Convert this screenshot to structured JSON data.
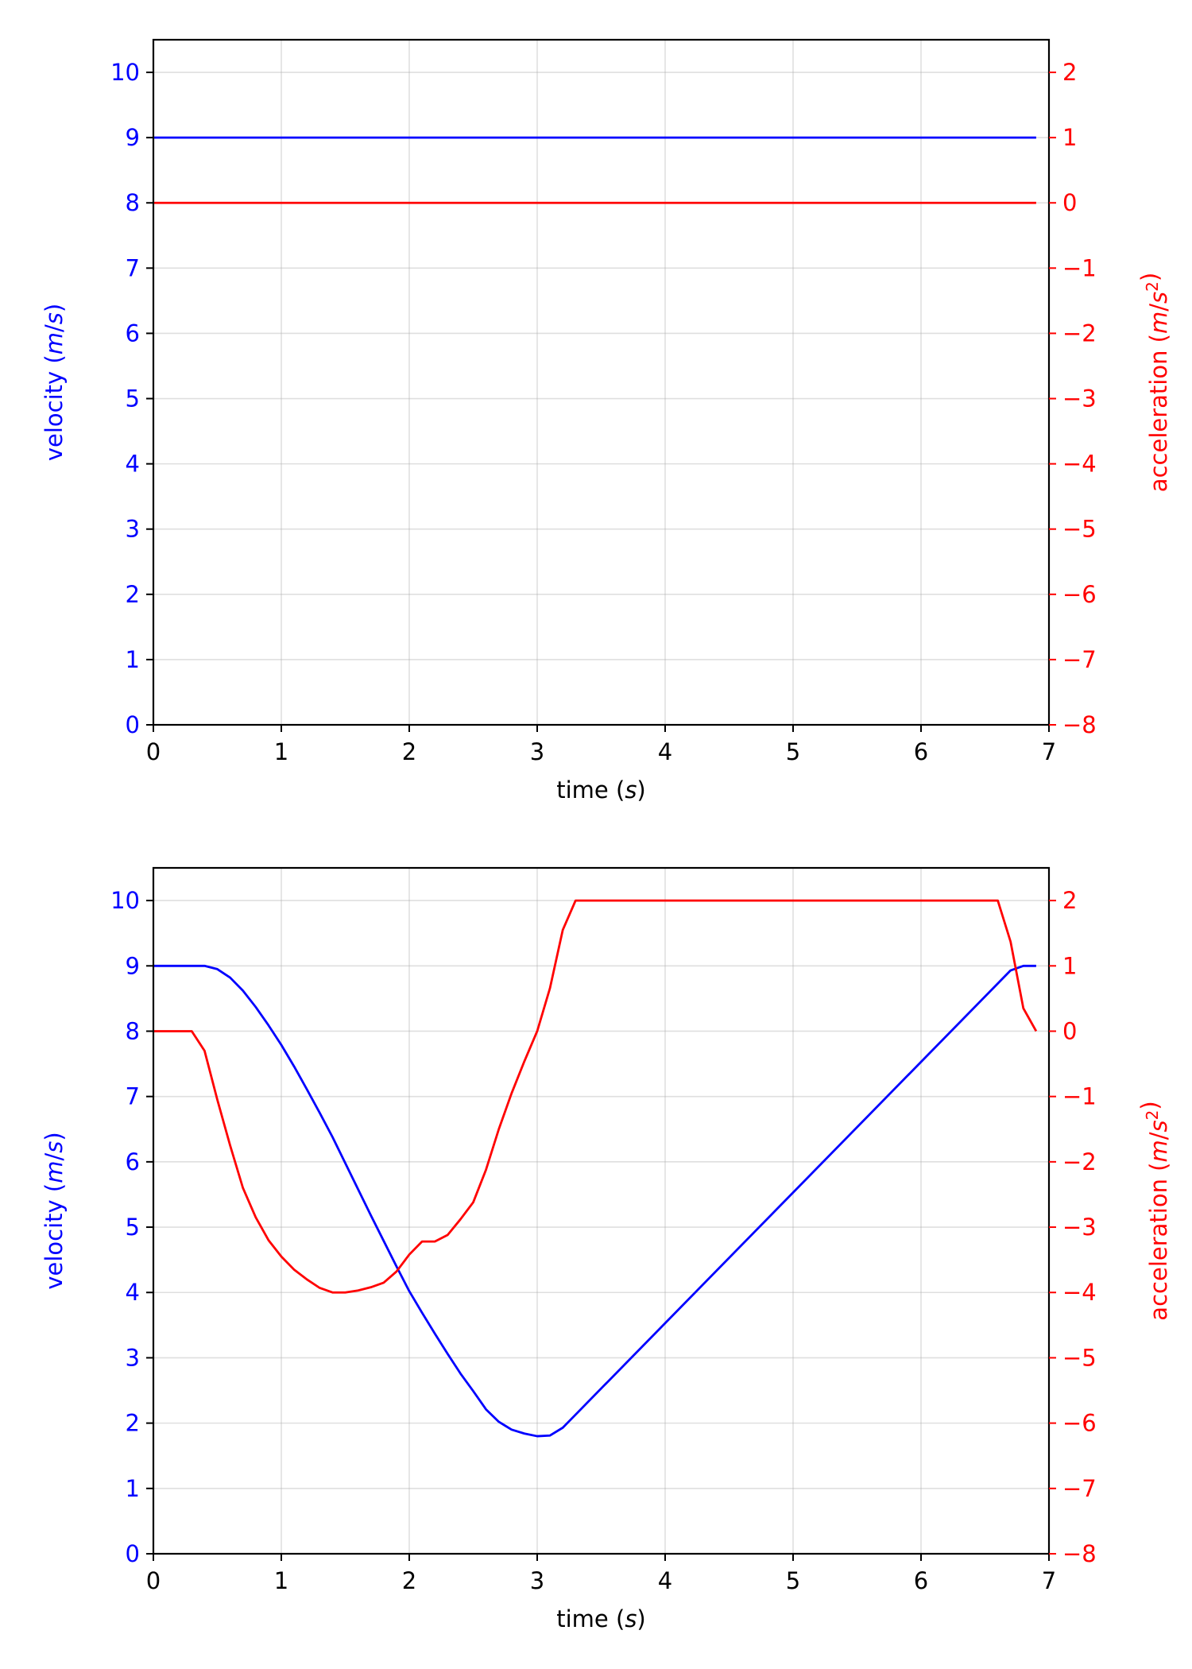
{
  "colors": {
    "velocity": "#0000ff",
    "acceleration": "#ff0000",
    "neutral": "#000000"
  },
  "chart_data": [
    {
      "type": "line",
      "xlabel": "time (s)",
      "ylabel_left": "velocity (m/s)",
      "ylabel_right": "acceleration (m/s²)",
      "xlim": [
        0,
        7
      ],
      "ylim_left": [
        0,
        10.5
      ],
      "ylim_right": [
        -8,
        2.5
      ],
      "xticks": [
        0,
        1,
        2,
        3,
        4,
        5,
        6,
        7
      ],
      "yticks_left": [
        0,
        1,
        2,
        3,
        4,
        5,
        6,
        7,
        8,
        9,
        10
      ],
      "yticks_right": [
        -8,
        -7,
        -6,
        -5,
        -4,
        -3,
        -2,
        -1,
        0,
        1,
        2
      ],
      "grid": true,
      "series": [
        {
          "axis": "left",
          "color": "#0000ff",
          "x": [
            0,
            6.9
          ],
          "y": [
            9,
            9
          ]
        },
        {
          "axis": "right",
          "color": "#ff0000",
          "x": [
            0,
            6.9
          ],
          "y": [
            0,
            0
          ]
        }
      ]
    },
    {
      "type": "line",
      "xlabel": "time (s)",
      "ylabel_left": "velocity (m/s)",
      "ylabel_right": "acceleration (m/s²)",
      "xlim": [
        0,
        7
      ],
      "ylim_left": [
        0,
        10.5
      ],
      "ylim_right": [
        -8,
        2.5
      ],
      "xticks": [
        0,
        1,
        2,
        3,
        4,
        5,
        6,
        7
      ],
      "yticks_left": [
        0,
        1,
        2,
        3,
        4,
        5,
        6,
        7,
        8,
        9,
        10
      ],
      "yticks_right": [
        -8,
        -7,
        -6,
        -5,
        -4,
        -3,
        -2,
        -1,
        0,
        1,
        2
      ],
      "grid": true,
      "series": [
        {
          "axis": "left",
          "color": "#0000ff",
          "x": [
            0,
            0.3,
            0.4,
            0.5,
            0.6,
            0.7,
            0.8,
            0.9,
            1.0,
            1.1,
            1.2,
            1.3,
            1.4,
            1.5,
            1.6,
            1.7,
            1.8,
            1.9,
            2.0,
            2.1,
            2.2,
            2.3,
            2.4,
            2.5,
            2.6,
            2.7,
            2.8,
            2.9,
            3.0,
            3.1,
            3.2,
            3.3,
            4.0,
            5.0,
            6.0,
            6.7,
            6.8,
            6.9
          ],
          "y": [
            9.0,
            9.0,
            9.0,
            8.95,
            8.82,
            8.62,
            8.37,
            8.09,
            7.79,
            7.46,
            7.11,
            6.75,
            6.38,
            5.98,
            5.58,
            5.18,
            4.79,
            4.4,
            4.02,
            3.69,
            3.37,
            3.06,
            2.76,
            2.49,
            2.21,
            2.02,
            1.9,
            1.84,
            1.8,
            1.81,
            1.93,
            2.13,
            3.53,
            5.53,
            7.53,
            8.93,
            9.0,
            9.0
          ]
        },
        {
          "axis": "right",
          "color": "#ff0000",
          "x": [
            0,
            0.3,
            0.4,
            0.5,
            0.6,
            0.7,
            0.8,
            0.9,
            1.0,
            1.1,
            1.2,
            1.3,
            1.4,
            1.5,
            1.6,
            1.7,
            1.8,
            1.9,
            2.0,
            2.1,
            2.2,
            2.3,
            2.4,
            2.5,
            2.6,
            2.7,
            2.8,
            2.9,
            3.0,
            3.1,
            3.2,
            3.3,
            6.6,
            6.7,
            6.8,
            6.9
          ],
          "y": [
            0,
            0,
            -0.3,
            -1.05,
            -1.75,
            -2.4,
            -2.85,
            -3.2,
            -3.45,
            -3.65,
            -3.8,
            -3.93,
            -4.0,
            -4.0,
            -3.97,
            -3.92,
            -3.85,
            -3.68,
            -3.42,
            -3.22,
            -3.22,
            -3.12,
            -2.88,
            -2.62,
            -2.12,
            -1.5,
            -0.95,
            -0.46,
            0,
            0.66,
            1.55,
            2.0,
            2.0,
            1.37,
            0.35,
            0
          ]
        }
      ]
    }
  ]
}
